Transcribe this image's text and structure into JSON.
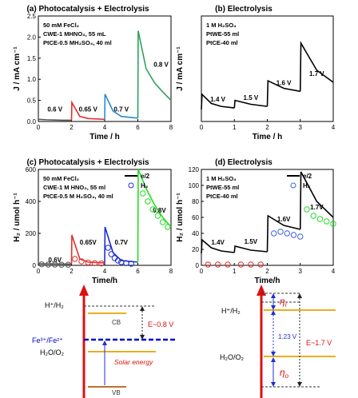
{
  "chart_data": [
    {
      "id": "a",
      "type": "line",
      "title": "(a) Photocatalysis + Electrolysis",
      "xlabel": "Time / h",
      "ylabel": "J / mA cm⁻¹",
      "xlim": [
        0,
        8
      ],
      "ylim": [
        0,
        2.5
      ],
      "xticks": [
        "0",
        "2",
        "4",
        "6",
        "8"
      ],
      "yticks": [
        "0.0",
        "0.5",
        "1.0",
        "1.5",
        "2.0",
        "2.5"
      ],
      "conditions": [
        "50 mM FeCl₂",
        "CWE-1 MHNO₃, 55 mL",
        "PtCE-0.5 MH₂SO₄, 40 ml"
      ],
      "series": [
        {
          "label": "0.6 V",
          "color": "#555555",
          "x": [
            0,
            0.5,
            1,
            1.5,
            2
          ],
          "y": [
            0.05,
            0.04,
            0.035,
            0.03,
            0.03
          ]
        },
        {
          "label": "0.65 V",
          "color": "#e03030",
          "x": [
            2,
            2.02,
            2.5,
            3,
            4
          ],
          "y": [
            0.03,
            0.45,
            0.12,
            0.07,
            0.05
          ]
        },
        {
          "label": "0.7 V",
          "color": "#2a8ad0",
          "x": [
            4,
            4.02,
            4.5,
            5,
            6
          ],
          "y": [
            0.05,
            0.65,
            0.25,
            0.12,
            0.08
          ]
        },
        {
          "label": "0.8 V",
          "color": "#2fa060",
          "x": [
            6,
            6.02,
            6.5,
            7,
            7.5,
            8
          ],
          "y": [
            0.08,
            2.15,
            1.25,
            0.92,
            0.7,
            0.5
          ]
        }
      ]
    },
    {
      "id": "b",
      "type": "line",
      "title": "(b) Electrolysis",
      "xlabel": "Time / h",
      "ylabel": "J / mA cm⁻¹",
      "xlim": [
        0,
        4
      ],
      "ylim": [
        0,
        0.35
      ],
      "xticks": [
        "0",
        "1",
        "2",
        "3",
        "4"
      ],
      "yticks": [],
      "conditions": [
        "1 M H₂SO₄",
        "PtWE-55 ml",
        "PtCE-40 ml"
      ],
      "series": [
        {
          "label": "1.4 V",
          "color": "#000000",
          "x": [
            0,
            0.02,
            0.3,
            0.6,
            1
          ],
          "y": [
            0.04,
            0.09,
            0.06,
            0.05,
            0.045
          ]
        },
        {
          "label": "1.5 V",
          "color": "#000000",
          "x": [
            1,
            1.02,
            1.5,
            2
          ],
          "y": [
            0.045,
            0.07,
            0.057,
            0.05
          ]
        },
        {
          "label": "1.6 V",
          "color": "#000000",
          "x": [
            2,
            2.02,
            2.5,
            3
          ],
          "y": [
            0.05,
            0.135,
            0.11,
            0.1
          ]
        },
        {
          "label": "1.7 V",
          "color": "#000000",
          "x": [
            3,
            3.02,
            3.5,
            4
          ],
          "y": [
            0.1,
            0.26,
            0.17,
            0.13
          ]
        }
      ]
    },
    {
      "id": "c",
      "type": "line",
      "title": "(c) Photocatalysis + Electrolysis",
      "xlabel": "Time/h",
      "ylabel": "H₂ / umol h⁻¹",
      "xlim": [
        0,
        8
      ],
      "ylim": [
        0,
        600
      ],
      "xticks": [
        "0",
        "2",
        "4",
        "6",
        "8"
      ],
      "yticks": [
        "0",
        "200",
        "400",
        "600"
      ],
      "legend": [
        "e/2",
        "H₂"
      ],
      "conditions": [
        "50 mM FeCl₂",
        "CWE-1 M HNO₃, 55 ml",
        "PtCE-0.5 M H₂SO₄, 40 ml"
      ],
      "series": [
        {
          "label": "0.6V",
          "color": "#555555",
          "x": [
            0,
            2
          ],
          "y": [
            10,
            8
          ]
        },
        {
          "label": "0.65V",
          "color": "#e03030",
          "x": [
            2,
            2.02,
            2.5,
            3,
            4
          ],
          "y": [
            8,
            190,
            40,
            20,
            15
          ]
        },
        {
          "label": "0.7V",
          "color": "#1f2fd0",
          "x": [
            4,
            4.02,
            4.5,
            5,
            6
          ],
          "y": [
            15,
            240,
            80,
            30,
            20
          ]
        },
        {
          "label": "0.8V",
          "color": "#22dd22",
          "x": [
            6,
            6.02,
            6.5,
            7,
            7.5,
            8
          ],
          "y": [
            20,
            600,
            480,
            380,
            300,
            240
          ]
        }
      ],
      "h2_points": [
        {
          "color": "#555555",
          "x": [
            0.2,
            0.6,
            1.0,
            1.4,
            1.8
          ],
          "y": [
            6,
            5,
            5,
            4,
            4
          ]
        },
        {
          "color": "#e03030",
          "x": [
            2.2,
            2.6,
            3.0,
            3.4,
            3.8
          ],
          "y": [
            40,
            25,
            18,
            14,
            12
          ]
        },
        {
          "color": "#1f2fd0",
          "x": [
            4.2,
            4.4,
            4.6,
            4.8,
            5.0,
            5.3,
            5.6
          ],
          "y": [
            110,
            70,
            45,
            30,
            20,
            14,
            10
          ]
        },
        {
          "color": "#22dd22",
          "x": [
            6.3,
            6.6,
            6.9,
            7.2,
            7.5,
            7.8
          ],
          "y": [
            450,
            400,
            350,
            310,
            270,
            240
          ]
        }
      ]
    },
    {
      "id": "d",
      "type": "line",
      "title": "(d) Electrolysis",
      "xlabel": "Time/h",
      "ylabel": "H₂ / umol h⁻¹",
      "xlim": [
        0,
        4
      ],
      "ylim": [
        0,
        120
      ],
      "xticks": [
        "0",
        "1",
        "2",
        "3",
        "4"
      ],
      "yticks": [
        "0",
        "20",
        "40",
        "60",
        "80",
        "100",
        "120"
      ],
      "legend": [
        "e/2",
        "H₂"
      ],
      "conditions": [
        "1 M H₂SO₄",
        "PtWE-55 ml",
        "PtCE-40 ml"
      ],
      "series": [
        {
          "label": "1.4V",
          "color": "#000000",
          "x": [
            0,
            0.02,
            0.3,
            0.6,
            1
          ],
          "y": [
            15,
            32,
            22,
            18,
            16
          ]
        },
        {
          "label": "1.5V",
          "color": "#000000",
          "x": [
            1,
            1.02,
            1.5,
            2
          ],
          "y": [
            16,
            24,
            19,
            17
          ]
        },
        {
          "label": "1.6V",
          "color": "#000000",
          "x": [
            2,
            2.02,
            2.5,
            3
          ],
          "y": [
            17,
            62,
            50,
            45
          ]
        },
        {
          "label": "1.7V",
          "color": "#000000",
          "x": [
            3,
            3.02,
            3.5,
            4
          ],
          "y": [
            45,
            117,
            80,
            60
          ]
        }
      ],
      "h2_points": [
        {
          "color": "#e03030",
          "x": [
            0.2,
            0.5,
            0.8,
            1.2,
            1.5,
            1.8
          ],
          "y": [
            1,
            1,
            1,
            1,
            1,
            1
          ]
        },
        {
          "color": "#4060e0",
          "x": [
            2.2,
            2.4,
            2.6,
            2.8,
            3.0
          ],
          "y": [
            40,
            42,
            40,
            38,
            36
          ]
        },
        {
          "color": "#22dd22",
          "x": [
            3.2,
            3.4,
            3.6,
            3.8,
            4.0
          ],
          "y": [
            70,
            62,
            58,
            55,
            52
          ]
        }
      ]
    }
  ],
  "diagram_left": {
    "h_label": "H⁺/H₂",
    "cb_label": "CB",
    "fe_label": "Fe³⁺/Fe²⁺",
    "o_label": "H₂O/O₂",
    "vb_label": "VB",
    "energy_label": "E~0.8 V",
    "solar_label": "Solar energy"
  },
  "diagram_right": {
    "h_label": "H⁺/H₂",
    "o_label": "H₂O/O₂",
    "eta_r": "η",
    "eta_r_sub": "r",
    "eta_o": "η",
    "eta_o_sub": "o",
    "gap_label": "1.23 V",
    "energy_label": "E~1.7 V"
  }
}
